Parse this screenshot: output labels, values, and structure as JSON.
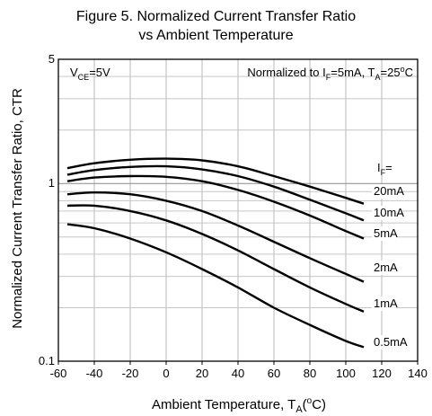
{
  "chart_data": {
    "type": "line",
    "title_line1": "Figure 5. Normalized Current Transfer Ratio",
    "title_line2": "vs Ambient Temperature",
    "xlabel_main": "Ambient Temperature, T",
    "xlabel_sub": "A",
    "xlabel_paren_open": "(",
    "xlabel_sup": "o",
    "xlabel_unit": "C)",
    "ylabel": "Normalized Current Transfer Ratio, CTR",
    "xlim": [
      -60,
      140
    ],
    "ylim": [
      0.1,
      5
    ],
    "yscale": "log",
    "grid": true,
    "x_ticks": [
      -60,
      -40,
      -20,
      0,
      20,
      40,
      60,
      80,
      100,
      120,
      140
    ],
    "y_tick_labels": [
      {
        "value": 0.1,
        "label": "0.1"
      },
      {
        "value": 1,
        "label": "1"
      },
      {
        "value": 5,
        "label": "5"
      }
    ],
    "annotation_left": {
      "v": "V",
      "sub": "CE",
      "rest": "=5V"
    },
    "annotation_right": {
      "prefix": "Normalized to I",
      "sub1": "F",
      "mid": "=5mA, T",
      "sub2": "A",
      "eq": "=25",
      "sup": "o",
      "unit": "C"
    },
    "legend_title": {
      "main": "I",
      "sub": "F",
      "rest": "="
    },
    "series": [
      {
        "name": "20mA",
        "x": [
          -55,
          -40,
          -20,
          0,
          20,
          40,
          60,
          80,
          100,
          110
        ],
        "values": [
          1.22,
          1.3,
          1.36,
          1.38,
          1.35,
          1.25,
          1.1,
          0.96,
          0.83,
          0.77
        ]
      },
      {
        "name": "10mA",
        "x": [
          -55,
          -40,
          -20,
          0,
          20,
          40,
          60,
          80,
          100,
          110
        ],
        "values": [
          1.12,
          1.19,
          1.24,
          1.25,
          1.2,
          1.1,
          0.96,
          0.81,
          0.68,
          0.62
        ]
      },
      {
        "name": "5mA",
        "x": [
          -55,
          -40,
          -20,
          0,
          20,
          40,
          60,
          80,
          100,
          110
        ],
        "values": [
          1.03,
          1.08,
          1.1,
          1.09,
          1.03,
          0.92,
          0.79,
          0.66,
          0.54,
          0.49
        ]
      },
      {
        "name": "2mA",
        "x": [
          -55,
          -40,
          -20,
          0,
          20,
          40,
          60,
          80,
          100,
          110
        ],
        "values": [
          0.87,
          0.89,
          0.87,
          0.8,
          0.7,
          0.58,
          0.47,
          0.38,
          0.31,
          0.28
        ]
      },
      {
        "name": "1mA",
        "x": [
          -55,
          -40,
          -20,
          0,
          20,
          40,
          60,
          80,
          100,
          110
        ],
        "values": [
          0.75,
          0.75,
          0.7,
          0.62,
          0.52,
          0.42,
          0.33,
          0.26,
          0.21,
          0.19
        ]
      },
      {
        "name": "0.5mA",
        "x": [
          -55,
          -40,
          -20,
          0,
          20,
          40,
          60,
          80,
          100,
          110
        ],
        "values": [
          0.59,
          0.56,
          0.49,
          0.41,
          0.33,
          0.26,
          0.2,
          0.16,
          0.13,
          0.12
        ]
      }
    ]
  }
}
